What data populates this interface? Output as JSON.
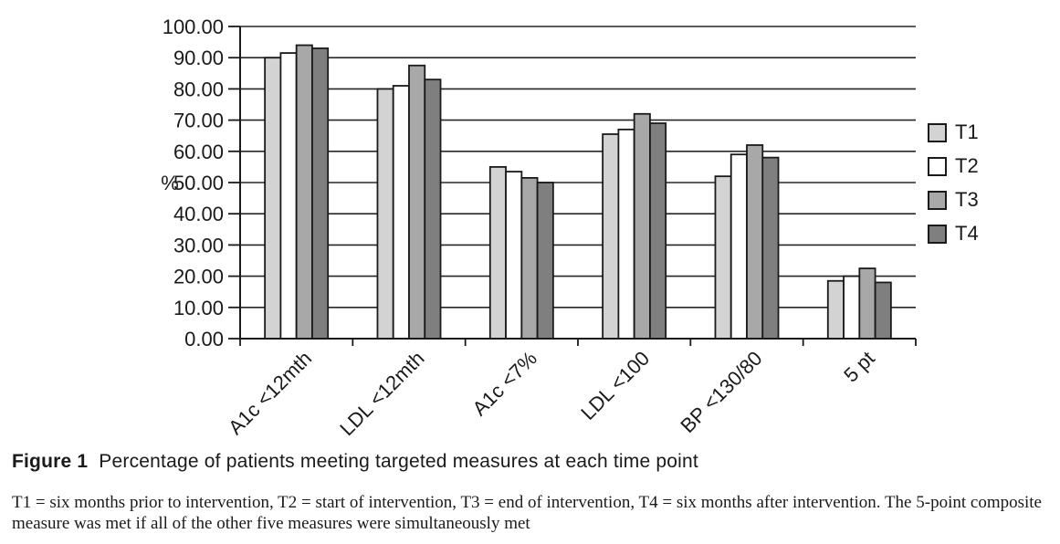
{
  "figure": {
    "caption_label": "Figure 1",
    "caption_text": "Percentage of patients meeting targeted measures at each time point",
    "footnote": "T1 = six months prior to intervention, T2 = start of intervention, T3 = end of intervention, T4 = six months after intervention. The 5-point composite measure was met if all of the other five measures were simultaneously met"
  },
  "chart_data": {
    "type": "bar",
    "title": "",
    "xlabel": "",
    "ylabel": "%",
    "categories": [
      "A1c <12mth",
      "LDL <12mth",
      "A1c <7%",
      "LDL <100",
      "BP <130/80",
      "5 pt"
    ],
    "series": [
      {
        "name": "T1",
        "color": "#d3d3d3",
        "values": [
          90.0,
          80.0,
          55.0,
          65.5,
          52.0,
          18.5
        ]
      },
      {
        "name": "T2",
        "color": "#ffffff",
        "values": [
          91.5,
          81.0,
          53.5,
          67.0,
          59.0,
          20.0
        ]
      },
      {
        "name": "T3",
        "color": "#a8a8a8",
        "values": [
          94.0,
          87.5,
          51.5,
          72.0,
          62.0,
          22.5
        ]
      },
      {
        "name": "T4",
        "color": "#7f7f7f",
        "values": [
          93.0,
          83.0,
          50.0,
          69.0,
          58.0,
          18.0
        ]
      }
    ],
    "ylim": [
      0,
      100
    ],
    "ytick_step": 10,
    "ytick_labels": [
      "0.00",
      "10.00",
      "20.00",
      "30.00",
      "40.00",
      "50.00",
      "60.00",
      "70.00",
      "80.00",
      "90.00",
      "100.00"
    ],
    "grid": true,
    "legend_position": "right",
    "bar_outline_color": "#1a1a1a",
    "grid_color": "#262626",
    "axis_color": "#1a1a1a"
  }
}
